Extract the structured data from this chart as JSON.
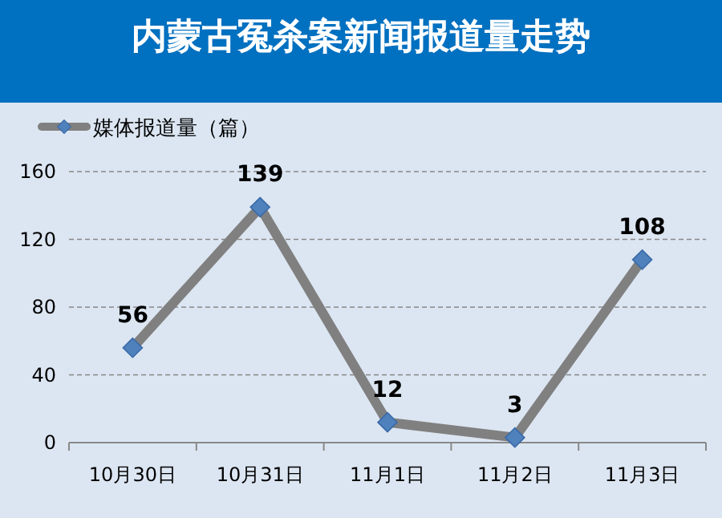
{
  "chart_data": {
    "type": "line",
    "title": "内蒙古冤杀案新闻报道量走势",
    "categories": [
      "10月30日",
      "10月31日",
      "11月1日",
      "11月2日",
      "11月3日"
    ],
    "series": [
      {
        "name": "媒体报道量（篇）",
        "color": "#808080",
        "values": [
          56,
          139,
          12,
          3,
          108
        ]
      }
    ],
    "ylim": [
      0,
      160
    ],
    "yticks": [
      0,
      40,
      80,
      120,
      160
    ],
    "grid": "y",
    "legend": "top left",
    "marker": "diamond",
    "line_style": "solid",
    "data_labels": true
  }
}
